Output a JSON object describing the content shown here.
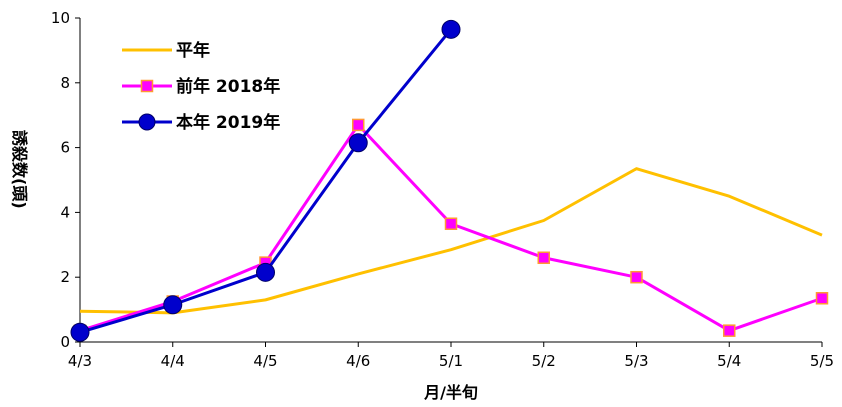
{
  "chart_data": {
    "type": "line",
    "title": "",
    "xlabel": "月/半旬",
    "ylabel": "誘殺数(頭)",
    "categories": [
      "4/3",
      "4/4",
      "4/5",
      "4/6",
      "5/1",
      "5/2",
      "5/3",
      "5/4",
      "5/5"
    ],
    "ylim": [
      0,
      10
    ],
    "yticks": [
      "0",
      "2",
      "4",
      "6",
      "8",
      "10"
    ],
    "grid": false,
    "legend_position": "top-left",
    "series": [
      {
        "name": "平年",
        "color": "#FFC000",
        "marker": "none",
        "values": [
          0.95,
          0.9,
          1.3,
          2.1,
          2.85,
          3.75,
          5.35,
          4.5,
          3.3
        ]
      },
      {
        "name": "前年 2018年",
        "color": "#FF00FF",
        "marker": "square",
        "values": [
          0.35,
          1.25,
          2.45,
          6.7,
          3.65,
          2.6,
          2.0,
          0.35,
          1.35
        ]
      },
      {
        "name": "本年 2019年",
        "color": "#0000CC",
        "marker": "circle",
        "values": [
          0.3,
          1.15,
          2.15,
          6.15,
          9.65,
          null,
          null,
          null,
          null
        ]
      }
    ]
  }
}
